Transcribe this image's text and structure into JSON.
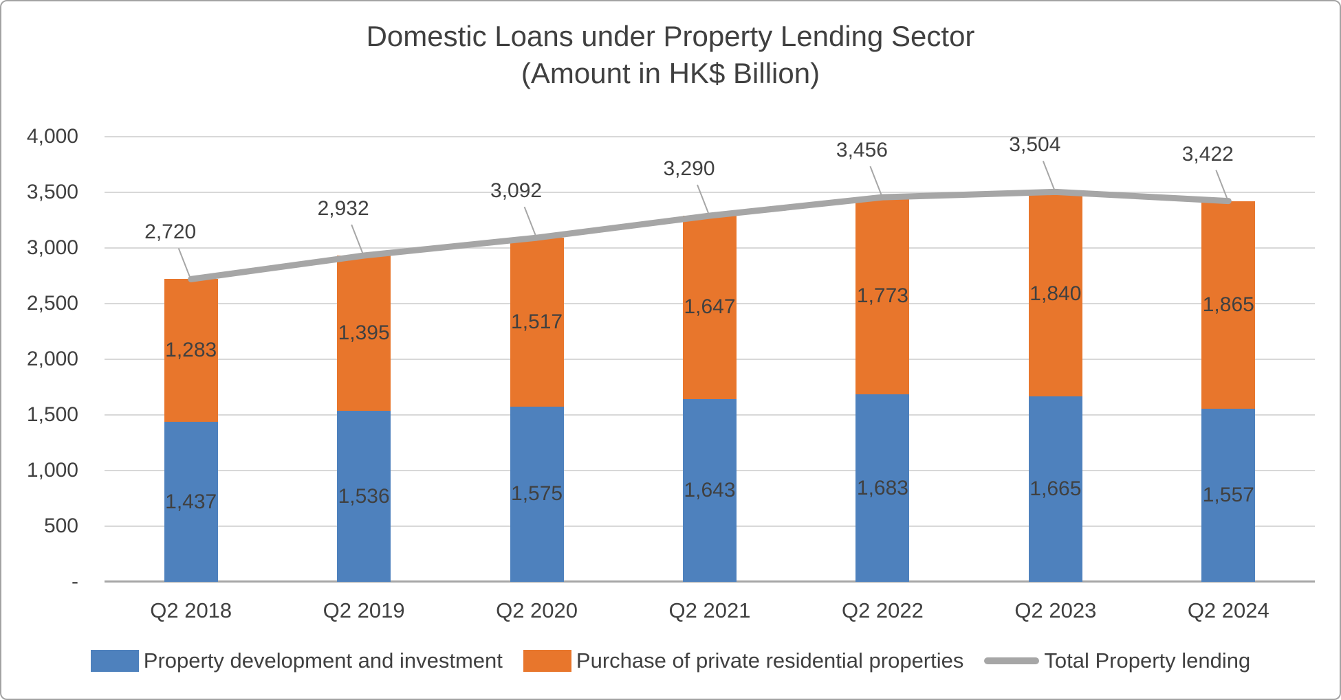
{
  "chart_data": {
    "type": "bar",
    "variant": "stacked-columns-with-total-line",
    "title": "Domestic Loans under Property Lending Sector",
    "subtitle": "(Amount in HK$ Billion)",
    "categories": [
      "Q2 2018",
      "Q2 2019",
      "Q2 2020",
      "Q2 2021",
      "Q2 2022",
      "Q2 2023",
      "Q2 2024"
    ],
    "series": [
      {
        "name": "Property development and investment",
        "type": "bar",
        "color": "#4E81BD",
        "values": [
          1437,
          1536,
          1575,
          1643,
          1683,
          1665,
          1557
        ],
        "labels": [
          "1,437",
          "1,536",
          "1,575",
          "1,643",
          "1,683",
          "1,665",
          "1,557"
        ]
      },
      {
        "name": "Purchase of private residential properties",
        "type": "bar",
        "color": "#E8762C",
        "values": [
          1283,
          1395,
          1517,
          1647,
          1773,
          1840,
          1865
        ],
        "labels": [
          "1,283",
          "1,395",
          "1,517",
          "1,647",
          "1,773",
          "1,840",
          "1,865"
        ]
      },
      {
        "name": "Total Property lending",
        "type": "line",
        "color": "#A6A6A6",
        "values": [
          2720,
          2932,
          3092,
          3290,
          3456,
          3504,
          3422
        ],
        "labels": [
          "2,720",
          "2,932",
          "3,092",
          "3,290",
          "3,456",
          "3,504",
          "3,422"
        ]
      }
    ],
    "y_axis": {
      "min": 0,
      "max": 4000,
      "step": 500,
      "tick_labels": [
        "-",
        "500",
        "1,000",
        "1,500",
        "2,000",
        "2,500",
        "3,000",
        "3,500",
        "4,000"
      ]
    },
    "grid": true,
    "legend_position": "bottom"
  },
  "colors": {
    "text": "#404040",
    "gridline": "#D8D8D8",
    "axis_line": "#A6A6A6",
    "leader_line": "#A6A6A6",
    "frame_border": "#A3A3A3"
  }
}
